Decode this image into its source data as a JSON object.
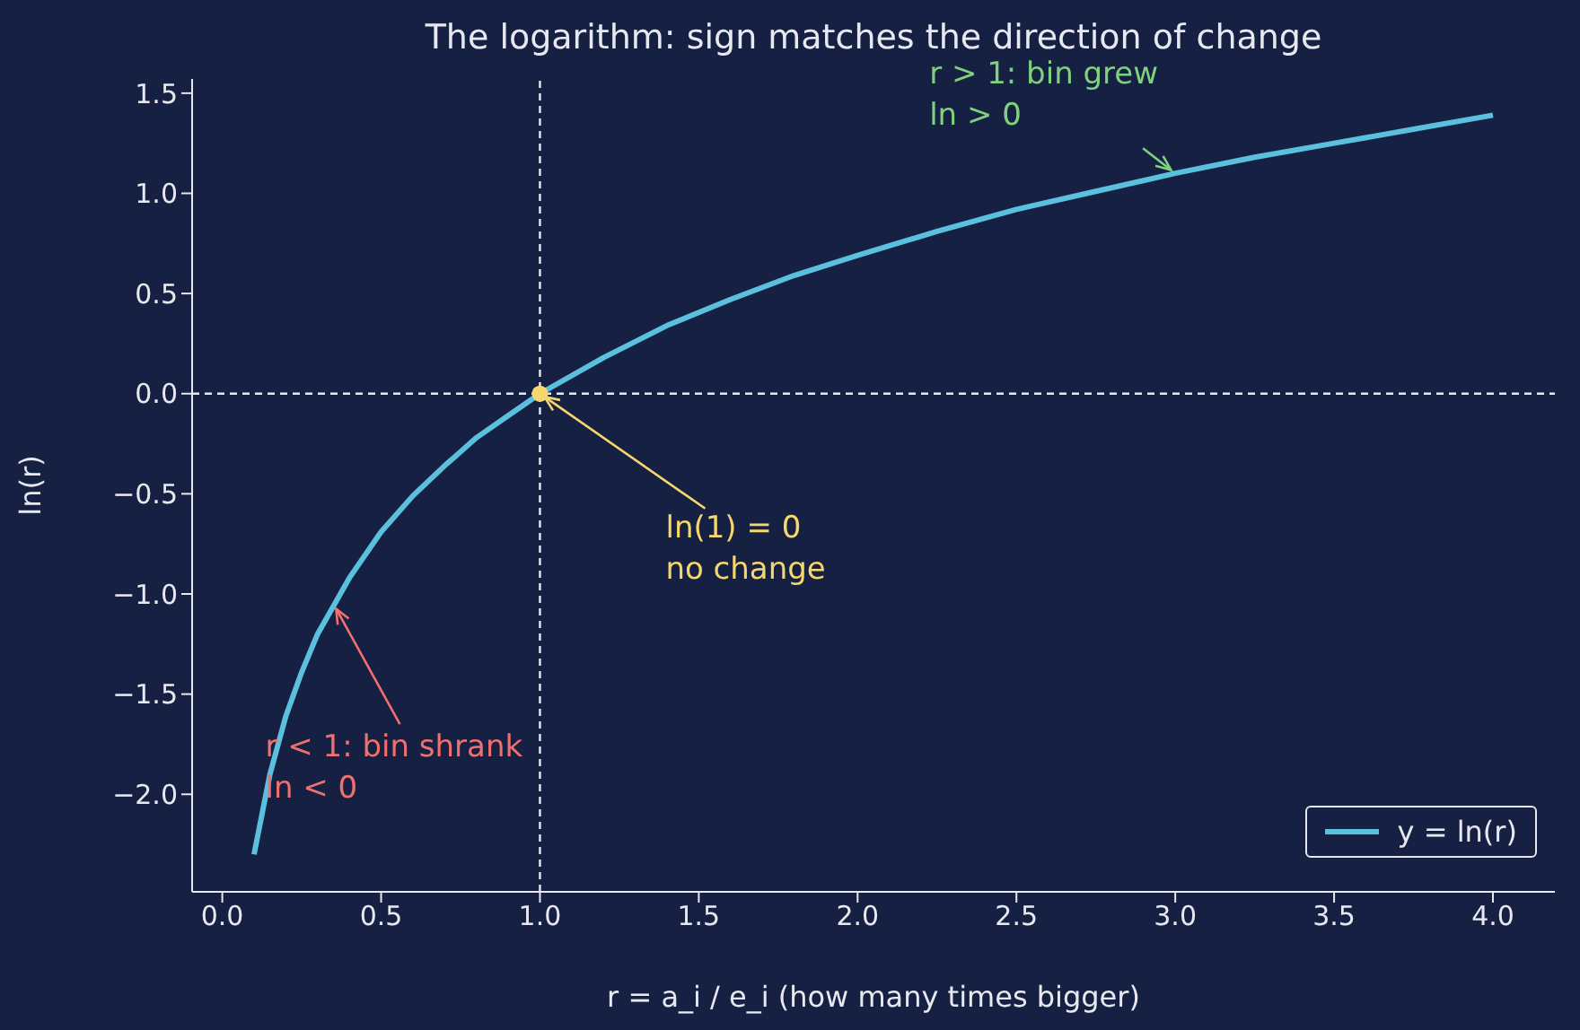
{
  "chart_data": {
    "type": "line",
    "title": "The logarithm: sign matches the direction of change",
    "xlabel": "r = a_i / e_i  (how many times bigger)",
    "ylabel": "ln(r)",
    "xlim": [
      -0.095,
      4.195
    ],
    "ylim": [
      -2.487,
      1.571
    ],
    "xticks": [
      {
        "value": 0,
        "label": "0.0"
      },
      0.5,
      {
        "value": 1,
        "label": "1.0"
      },
      1.5,
      {
        "value": 2,
        "label": "2.0"
      },
      2.5,
      {
        "value": 3,
        "label": "3.0"
      },
      3.5,
      {
        "value": 4,
        "label": "4.0"
      }
    ],
    "yticks": [
      {
        "value": -2,
        "label": "−2.0"
      },
      {
        "value": -1.5,
        "label": "−1.5"
      },
      {
        "value": -1,
        "label": "−1.0"
      },
      {
        "value": -0.5,
        "label": "−0.5"
      },
      {
        "value": 0,
        "label": "0.0"
      },
      0.5,
      {
        "value": 1,
        "label": "1.0"
      },
      1.5
    ],
    "series": [
      {
        "name": "y = ln(r)",
        "color": "#5bc0de",
        "marker": "none",
        "x": [
          0.1,
          0.15,
          0.2,
          0.25,
          0.3,
          0.4,
          0.5,
          0.6,
          0.7,
          0.8,
          0.9,
          1.0,
          1.2,
          1.4,
          1.6,
          1.8,
          2.0,
          2.25,
          2.5,
          2.75,
          3.0,
          3.25,
          3.5,
          3.75,
          4.0
        ],
        "values": [
          -2.3,
          -1.9,
          -1.61,
          -1.39,
          -1.2,
          -0.92,
          -0.69,
          -0.51,
          -0.36,
          -0.22,
          -0.11,
          0,
          0.18,
          0.34,
          0.47,
          0.59,
          0.69,
          0.81,
          0.92,
          1.01,
          1.1,
          1.18,
          1.25,
          1.32,
          1.39
        ]
      },
      {
        "type": "scatter",
        "color": "#f5d76e",
        "marker": "circle",
        "x": [
          1.0
        ],
        "values": [
          0
        ]
      }
    ],
    "ref_lines": [
      {
        "axis": "x",
        "value": 1.0,
        "color": "#e8e8f0",
        "line_style": "dashed"
      },
      {
        "axis": "y",
        "value": 0.0,
        "color": "#e8e8f0",
        "line_style": "dashed"
      }
    ],
    "annotations": [
      {
        "text": "r > 1: bin grew\nln > 0",
        "x": 3.0,
        "y": 1.1
      },
      {
        "text": "ln(1) = 0\nno change",
        "x": 1.0,
        "y": 0
      },
      {
        "text": "r < 1: bin shrank\nln < 0",
        "x": 0.35,
        "y": -1.05
      }
    ],
    "line_style": "solid",
    "legend": "bottom right"
  }
}
